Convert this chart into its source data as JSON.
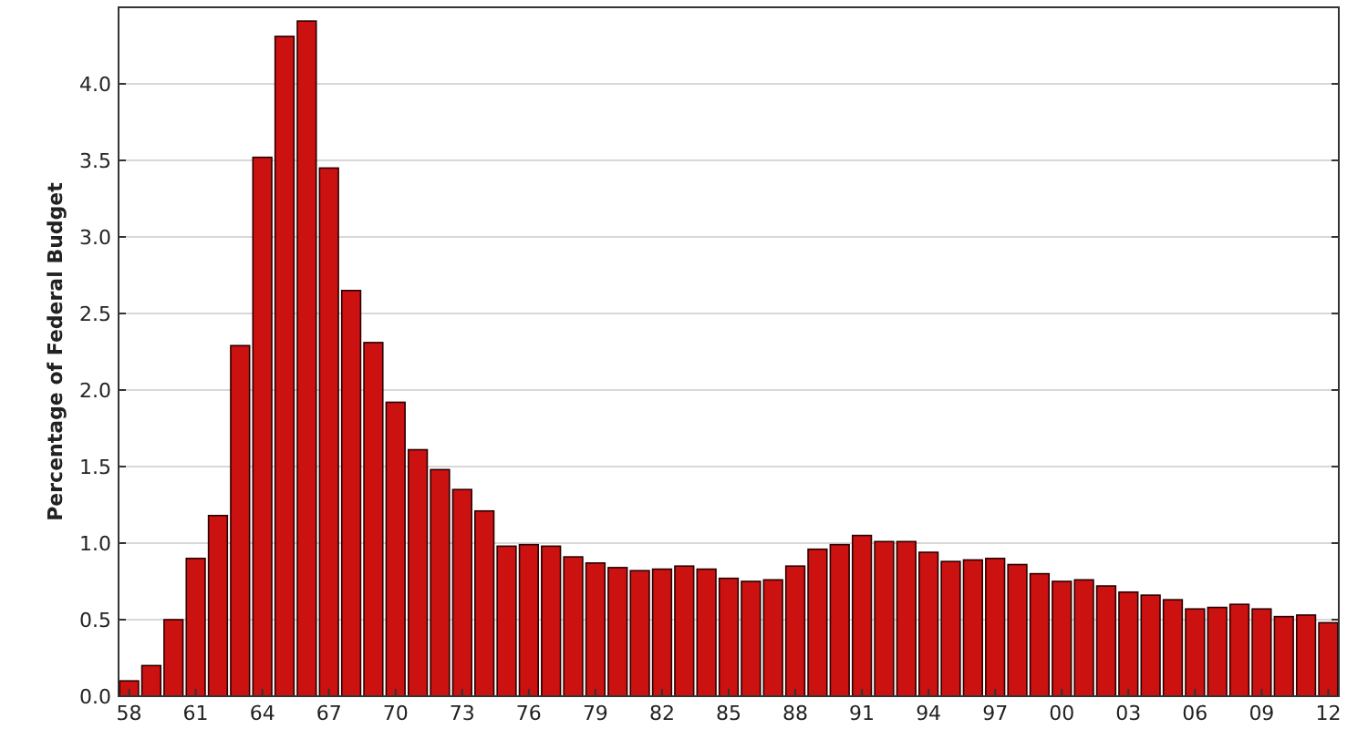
{
  "chart_data": {
    "type": "bar",
    "ylabel": "Percentage of Federal Budget",
    "categories": [
      "58",
      null,
      null,
      "61",
      null,
      null,
      "64",
      null,
      null,
      "67",
      null,
      null,
      "70",
      null,
      null,
      "73",
      null,
      null,
      "76",
      null,
      null,
      "79",
      null,
      null,
      "82",
      null,
      null,
      "85",
      null,
      null,
      "88",
      null,
      null,
      "91",
      null,
      null,
      "94",
      null,
      null,
      "97",
      null,
      null,
      "00",
      null,
      null,
      "03",
      null,
      null,
      "06",
      null,
      null,
      "09",
      null,
      null,
      "12"
    ],
    "values": [
      0.1,
      0.2,
      0.5,
      0.9,
      1.18,
      2.29,
      3.52,
      4.31,
      4.41,
      3.45,
      2.65,
      2.31,
      1.92,
      1.61,
      1.48,
      1.35,
      1.21,
      0.98,
      0.99,
      0.98,
      0.91,
      0.87,
      0.84,
      0.82,
      0.83,
      0.85,
      0.83,
      0.77,
      0.75,
      0.76,
      0.85,
      0.96,
      0.99,
      1.05,
      1.01,
      1.01,
      0.94,
      0.88,
      0.89,
      0.9,
      0.86,
      0.8,
      0.75,
      0.76,
      0.72,
      0.68,
      0.66,
      0.63,
      0.57,
      0.58,
      0.6,
      0.57,
      0.52,
      0.53,
      0.48
    ],
    "color": "#cc1111",
    "ylim": [
      0,
      4.5
    ],
    "yticks": [
      {
        "value": 0,
        "label": "0.0"
      },
      {
        "value": 0.5,
        "label": "0.5"
      },
      {
        "value": 1,
        "label": "1.0"
      },
      {
        "value": 1.5,
        "label": "1.5"
      },
      {
        "value": 2,
        "label": "2.0"
      },
      {
        "value": 2.5,
        "label": "2.5"
      },
      {
        "value": 3,
        "label": "3.0"
      },
      {
        "value": 3.5,
        "label": "3.5"
      },
      {
        "value": 4,
        "label": "4.0"
      }
    ],
    "grid": "y"
  }
}
